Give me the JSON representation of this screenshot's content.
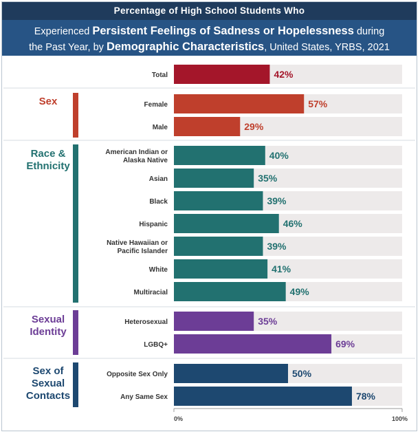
{
  "header": {
    "top_line": "Percentage of High School Students Who",
    "line1": [
      "Experienced ",
      "Persistent Feelings of Sadness or Hopelessness",
      " during"
    ],
    "line2": [
      "the Past Year, by ",
      "Demographic Characteristics",
      ", United States, YRBS, 2021"
    ]
  },
  "colors": {
    "total": "#a4162a",
    "sex": "#bf3f2c",
    "race": "#227170",
    "sexual_identity": "#6c3d96",
    "sexual_contacts": "#1d4870",
    "track": "#edeaea"
  },
  "chart_data": {
    "type": "bar",
    "orientation": "horizontal",
    "unit": "%",
    "xlim": [
      0,
      100
    ],
    "x_tick_labels": [
      "0%",
      "100%"
    ],
    "groups": [
      {
        "key": "total",
        "label": "",
        "rows": [
          {
            "label": "Total",
            "value": 42,
            "value_label": "42%"
          }
        ]
      },
      {
        "key": "sex",
        "label": "Sex",
        "rows": [
          {
            "label": "Female",
            "value": 57,
            "value_label": "57%"
          },
          {
            "label": "Male",
            "value": 29,
            "value_label": "29%"
          }
        ]
      },
      {
        "key": "race",
        "label": "Race & Ethnicity",
        "rows": [
          {
            "label": "American Indian or Alaska Native",
            "value": 40,
            "value_label": "40%"
          },
          {
            "label": "Asian",
            "value": 35,
            "value_label": "35%"
          },
          {
            "label": "Black",
            "value": 39,
            "value_label": "39%"
          },
          {
            "label": "Hispanic",
            "value": 46,
            "value_label": "46%"
          },
          {
            "label": "Native Hawaiian or Pacific Islander",
            "value": 39,
            "value_label": "39%"
          },
          {
            "label": "White",
            "value": 41,
            "value_label": "41%"
          },
          {
            "label": "Multiracial",
            "value": 49,
            "value_label": "49%"
          }
        ]
      },
      {
        "key": "sexual_identity",
        "label": "Sexual Identity",
        "rows": [
          {
            "label": "Heterosexual",
            "value": 35,
            "value_label": "35%"
          },
          {
            "label": "LGBQ+",
            "value": 69,
            "value_label": "69%"
          }
        ]
      },
      {
        "key": "sexual_contacts",
        "label": "Sex of Sexual Contacts",
        "rows": [
          {
            "label": "Opposite Sex Only",
            "value": 50,
            "value_label": "50%"
          },
          {
            "label": "Any Same Sex",
            "value": 78,
            "value_label": "78%"
          }
        ]
      }
    ]
  }
}
